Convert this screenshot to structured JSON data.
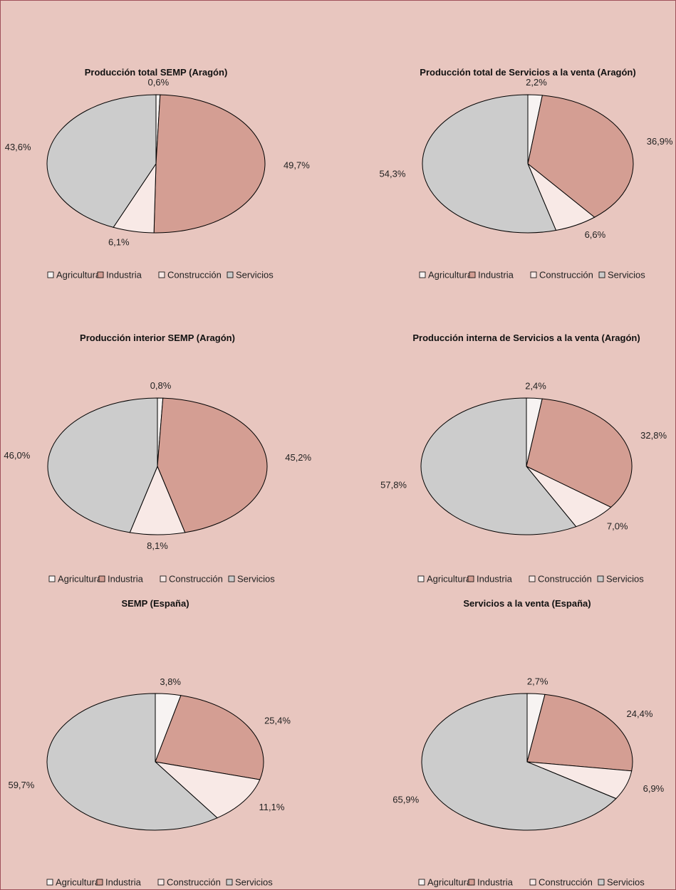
{
  "chart_data": [
    {
      "type": "pie",
      "title": "Producción total SEMP (Aragón)",
      "categories": [
        "Agricultura",
        "Industria",
        "Construcción",
        "Servicios"
      ],
      "values": [
        0.6,
        49.7,
        6.1,
        43.6
      ],
      "value_labels": [
        "0,6%",
        "49,7%",
        "6,1%",
        "43,6%"
      ],
      "colors": [
        "#f7f3f2",
        "#d49e93",
        "#f8e9e6",
        "#cccccc"
      ]
    },
    {
      "type": "pie",
      "title": "Producción total de Servicios a la venta (Aragón)",
      "categories": [
        "Agricultura",
        "Industria",
        "Construcción",
        "Servicios"
      ],
      "values": [
        2.2,
        36.9,
        6.6,
        54.3
      ],
      "value_labels": [
        "2,2%",
        "36,9%",
        "6,6%",
        "54,3%"
      ],
      "colors": [
        "#f7f3f2",
        "#d49e93",
        "#f8e9e6",
        "#cccccc"
      ]
    },
    {
      "type": "pie",
      "title": "Producción interior SEMP (Aragón)",
      "categories": [
        "Agricultura",
        "Industria",
        "Construcción",
        "Servicios"
      ],
      "values": [
        0.8,
        45.2,
        8.1,
        46.0
      ],
      "value_labels": [
        "0,8%",
        "45,2%",
        "8,1%",
        "46,0%"
      ],
      "colors": [
        "#f7f3f2",
        "#d49e93",
        "#f8e9e6",
        "#cccccc"
      ]
    },
    {
      "type": "pie",
      "title": "Producción interna de Servicios a la venta (Aragón)",
      "categories": [
        "Agricultura",
        "Industria",
        "Construcción",
        "Servicios"
      ],
      "values": [
        2.4,
        32.8,
        7.0,
        57.8
      ],
      "value_labels": [
        "2,4%",
        "32,8%",
        "7,0%",
        "57,8%"
      ],
      "colors": [
        "#f7f3f2",
        "#d49e93",
        "#f8e9e6",
        "#cccccc"
      ]
    },
    {
      "type": "pie",
      "title": "SEMP (España)",
      "categories": [
        "Agricultura",
        "Industria",
        "Construcción",
        "Servicios"
      ],
      "values": [
        3.8,
        25.4,
        11.1,
        59.7
      ],
      "value_labels": [
        "3,8%",
        "25,4%",
        "11,1%",
        "59,7%"
      ],
      "colors": [
        "#f7f3f2",
        "#d49e93",
        "#f8e9e6",
        "#cccccc"
      ]
    },
    {
      "type": "pie",
      "title": "Servicios a la venta (España)",
      "categories": [
        "Agricultura",
        "Industria",
        "Construcción",
        "Servicios"
      ],
      "values": [
        2.7,
        24.4,
        6.9,
        65.9
      ],
      "value_labels": [
        "2,7%",
        "24,4%",
        "6,9%",
        "65,9%"
      ],
      "colors": [
        "#f7f3f2",
        "#d49e93",
        "#f8e9e6",
        "#cccccc"
      ]
    }
  ]
}
